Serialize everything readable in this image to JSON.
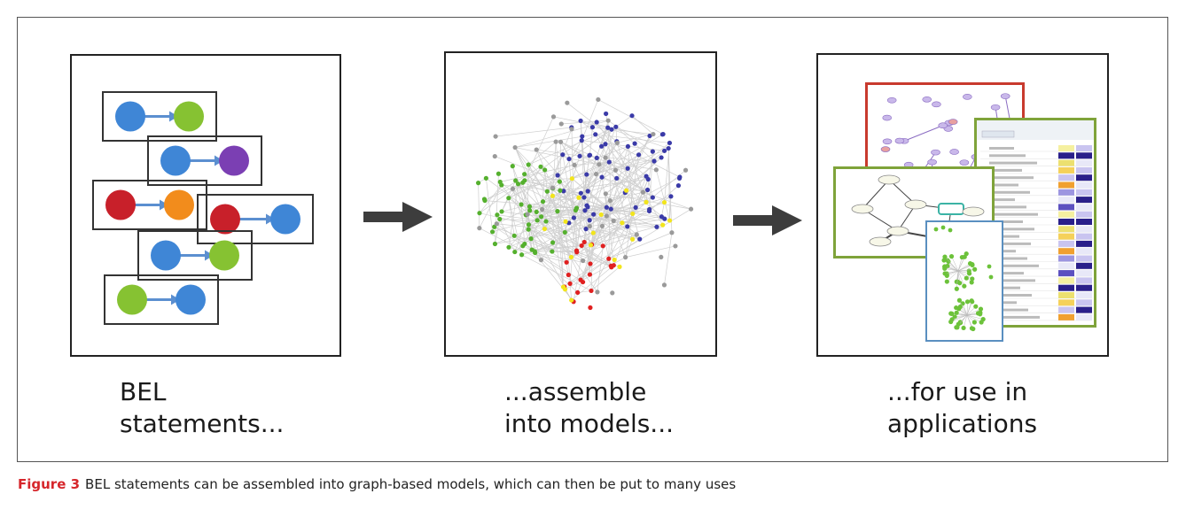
{
  "labels": {
    "statements": [
      "BEL",
      "statements..."
    ],
    "models": [
      "...assemble",
      "into models..."
    ],
    "applications": [
      "...for use in",
      "applications"
    ]
  },
  "caption": {
    "figure_label": "Figure 3",
    "text": "BEL statements can be assembled into graph-based models, which can then be put to many uses"
  },
  "colors": {
    "node_blue": "#3f86d6",
    "node_green": "#86c232",
    "node_purple": "#7b3fb3",
    "node_red": "#c8202a",
    "node_orange": "#f28c1c",
    "edge_blue": "#5b8fd0",
    "net_blue": "#3a3aa8",
    "net_green": "#55b02e",
    "net_red": "#e02020",
    "net_yellow": "#f2e51c",
    "net_gray": "#9a9a9a",
    "caption_red": "#d6262b",
    "arrow": "#3d3d3d"
  },
  "statements": [
    {
      "subject": "node_blue",
      "object": "node_green"
    },
    {
      "subject": "node_blue",
      "object": "node_purple"
    },
    {
      "subject": "node_red",
      "object": "node_orange"
    },
    {
      "subject": "node_red",
      "object": "node_blue"
    },
    {
      "subject": "node_blue",
      "object": "node_green"
    },
    {
      "subject": "node_green",
      "object": "node_blue"
    }
  ]
}
